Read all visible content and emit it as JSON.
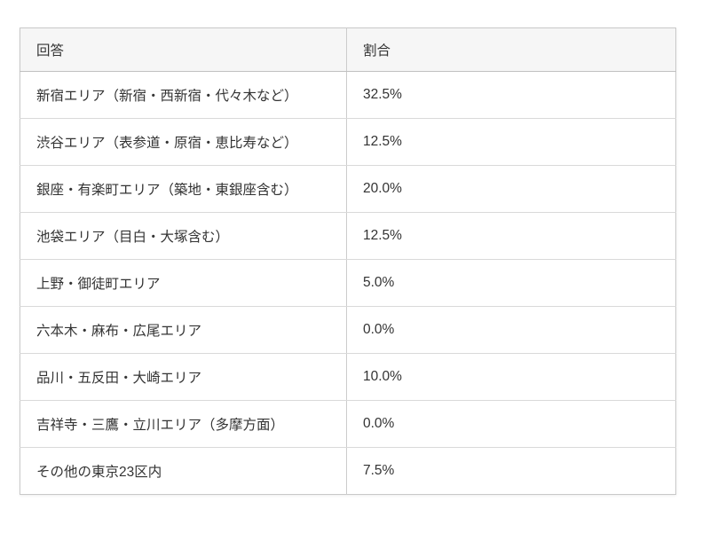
{
  "table": {
    "columns": [
      {
        "label": "回答"
      },
      {
        "label": "割合"
      }
    ],
    "rows": [
      {
        "answer": "新宿エリア（新宿・西新宿・代々木など）",
        "ratio": "32.5%"
      },
      {
        "answer": "渋谷エリア（表参道・原宿・恵比寿など）",
        "ratio": "12.5%"
      },
      {
        "answer": "銀座・有楽町エリア（築地・東銀座含む）",
        "ratio": "20.0%"
      },
      {
        "answer": "池袋エリア（目白・大塚含む）",
        "ratio": "12.5%"
      },
      {
        "answer": "上野・御徒町エリア",
        "ratio": "5.0%"
      },
      {
        "answer": "六本木・麻布・広尾エリア",
        "ratio": "0.0%"
      },
      {
        "answer": "品川・五反田・大崎エリア",
        "ratio": "10.0%"
      },
      {
        "answer": "吉祥寺・三鷹・立川エリア（多摩方面）",
        "ratio": "0.0%"
      },
      {
        "answer": "その他の東京23区内",
        "ratio": "7.5%"
      }
    ]
  },
  "chart_data": {
    "type": "table",
    "title": "",
    "columns": [
      "回答",
      "割合"
    ],
    "categories": [
      "新宿エリア（新宿・西新宿・代々木など）",
      "渋谷エリア（表参道・原宿・恵比寿など）",
      "銀座・有楽町エリア（築地・東銀座含む）",
      "池袋エリア（目白・大塚含む）",
      "上野・御徒町エリア",
      "六本木・麻布・広尾エリア",
      "品川・五反田・大崎エリア",
      "吉祥寺・三鷹・立川エリア（多摩方面）",
      "その他の東京23区内"
    ],
    "values": [
      32.5,
      12.5,
      20.0,
      12.5,
      5.0,
      0.0,
      10.0,
      0.0,
      7.5
    ],
    "unit": "%"
  },
  "colors": {
    "page_background": "#ffffff",
    "header_background": "#f6f6f6",
    "outer_border": "#c9c9c9",
    "header_border": "#c0c0c0",
    "row_border": "#d9d9d9",
    "text": "#333333"
  }
}
